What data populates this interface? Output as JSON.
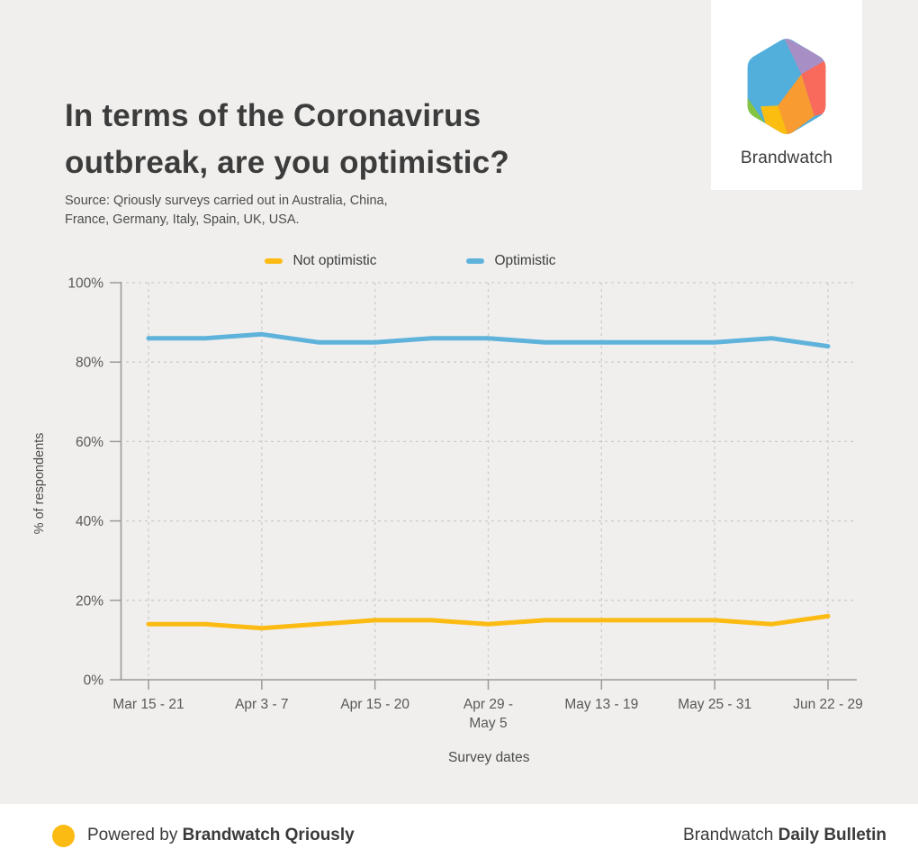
{
  "header": {
    "title": "In terms of the Coronavirus outbreak, are you optimistic?",
    "source": "Source: Qriously surveys carried out in Australia, China,\nFrance, Germany, Italy, Spain, UK, USA.",
    "brand": {
      "name": "Brandwatch",
      "logo_colors": {
        "blue": "#52AEDA",
        "purple": "#A78FC5",
        "coral": "#F9695C",
        "orange": "#F89B30",
        "yellow": "#FBBE10",
        "green": "#85C441"
      }
    }
  },
  "chart_data": {
    "type": "line",
    "title": "In terms of the Coronavirus outbreak, are you optimistic?",
    "xlabel": "Survey dates",
    "ylabel": "% of respondents",
    "ylim": [
      0,
      100
    ],
    "y_ticks": [
      "0%",
      "20%",
      "40%",
      "60%",
      "80%",
      "100%"
    ],
    "grid": true,
    "legend_position": "top",
    "categories": [
      "Mar 15 - 21",
      "",
      "Apr 3 - 7",
      "",
      "Apr 15 - 20",
      "",
      "Apr 29 -\nMay 5",
      "",
      "May 13 - 19",
      "",
      "May 25 - 31",
      "",
      "Jun 22 - 29"
    ],
    "series": [
      {
        "key": "not-optimistic",
        "name": "Not optimistic",
        "color": "#FCBB13",
        "values": [
          14,
          14,
          13,
          14,
          15,
          15,
          14,
          15,
          15,
          15,
          15,
          14,
          16
        ]
      },
      {
        "key": "optimistic",
        "name": "Optimistic",
        "color": "#5FB3DB",
        "values": [
          86,
          86,
          87,
          85,
          85,
          86,
          86,
          85,
          85,
          85,
          85,
          86,
          84
        ]
      }
    ],
    "colors": {
      "grid": "#cccccc",
      "axis": "#9a9a9a",
      "tick_text": "#595959",
      "axis_title": "#4d4d4d"
    }
  },
  "footer": {
    "powered_by_prefix": "Powered by ",
    "powered_by_brand": "Brandwatch Qriously",
    "right_prefix": "Brandwatch ",
    "right_bold": "Daily Bulletin",
    "dot_color": "#FCBB13"
  }
}
